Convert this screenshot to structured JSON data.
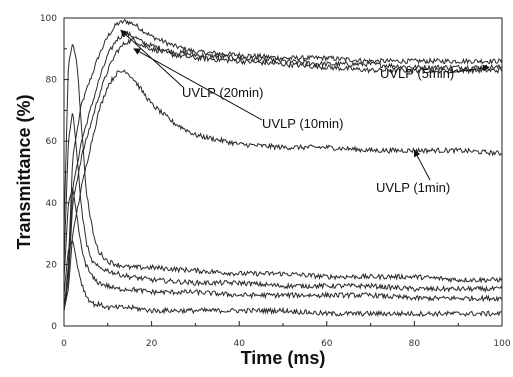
{
  "chart_data": {
    "type": "line",
    "title": "",
    "xlabel": "Time (ms)",
    "ylabel": "Transmittance (%)",
    "xlim": [
      0,
      100
    ],
    "ylim": [
      0,
      100
    ],
    "xticks": [
      0,
      20,
      40,
      60,
      80,
      100
    ],
    "yticks": [
      0,
      20,
      40,
      60,
      80,
      100
    ],
    "grid": false,
    "legend": "none",
    "series": [
      {
        "name": "UVLP (20min)",
        "x": [
          0,
          1,
          2,
          4,
          6,
          8,
          10,
          12,
          14,
          16,
          18,
          20,
          25,
          30,
          40,
          50,
          60,
          70,
          80,
          90,
          100
        ],
        "y": [
          5,
          20,
          55,
          72,
          80,
          88,
          94,
          98,
          99,
          98,
          96,
          94,
          91,
          89,
          88,
          87,
          87,
          86,
          86,
          86,
          86
        ]
      },
      {
        "name": "UVLP (10min)",
        "x": [
          0,
          1,
          2,
          4,
          6,
          8,
          10,
          12,
          14,
          16,
          18,
          20,
          25,
          30,
          40,
          50,
          60,
          70,
          80,
          90,
          100
        ],
        "y": [
          5,
          18,
          45,
          60,
          70,
          80,
          88,
          93,
          95,
          94,
          92,
          91,
          89,
          88,
          87,
          86,
          85,
          85,
          84,
          84,
          84
        ]
      },
      {
        "name": "UVLP (5min)",
        "x": [
          0,
          1,
          2,
          4,
          6,
          8,
          10,
          12,
          14,
          16,
          18,
          20,
          25,
          30,
          40,
          50,
          60,
          70,
          80,
          90,
          100
        ],
        "y": [
          5,
          15,
          40,
          55,
          65,
          75,
          83,
          89,
          92,
          93,
          91,
          90,
          88,
          87,
          86,
          85,
          84,
          83,
          83,
          83,
          83
        ]
      },
      {
        "name": "UVLP (1min)",
        "x": [
          0,
          1,
          2,
          4,
          6,
          8,
          10,
          12,
          14,
          16,
          18,
          20,
          25,
          30,
          40,
          50,
          60,
          70,
          80,
          90,
          100
        ],
        "y": [
          5,
          12,
          30,
          45,
          58,
          70,
          78,
          82,
          83,
          80,
          76,
          72,
          66,
          62,
          59,
          58,
          58,
          57,
          57,
          57,
          56
        ]
      },
      {
        "name": "",
        "x": [
          0,
          1,
          2,
          3,
          4,
          5,
          6,
          7,
          8,
          10,
          12,
          15,
          20,
          30,
          40,
          50,
          60,
          70,
          80,
          90,
          100
        ],
        "y": [
          30,
          85,
          92,
          85,
          65,
          45,
          35,
          28,
          24,
          21,
          20,
          19,
          19,
          18,
          17,
          17,
          16,
          16,
          16,
          15,
          15
        ]
      },
      {
        "name": "",
        "x": [
          0,
          1,
          2,
          3,
          4,
          5,
          6,
          7,
          8,
          10,
          12,
          15,
          20,
          30,
          40,
          50,
          60,
          70,
          80,
          90,
          100
        ],
        "y": [
          20,
          60,
          70,
          55,
          38,
          28,
          22,
          20,
          19,
          18,
          17,
          16,
          15,
          14,
          14,
          13,
          13,
          13,
          12,
          12,
          12
        ]
      },
      {
        "name": "",
        "x": [
          0,
          1,
          2,
          3,
          4,
          5,
          6,
          7,
          8,
          10,
          12,
          15,
          20,
          30,
          40,
          50,
          60,
          70,
          80,
          90,
          100
        ],
        "y": [
          15,
          40,
          45,
          35,
          25,
          20,
          17,
          15,
          14,
          13,
          12,
          12,
          11,
          11,
          10,
          10,
          10,
          10,
          9,
          9,
          9
        ]
      },
      {
        "name": "",
        "x": [
          0,
          1,
          2,
          3,
          4,
          5,
          6,
          7,
          8,
          10,
          12,
          15,
          20,
          30,
          40,
          50,
          60,
          70,
          80,
          90,
          100
        ],
        "y": [
          10,
          25,
          28,
          20,
          14,
          10,
          8,
          7,
          7,
          6,
          6,
          6,
          5,
          5,
          5,
          5,
          4,
          4,
          4,
          4,
          4
        ]
      }
    ],
    "annotations": [
      {
        "text": "UVLP (20min)",
        "arrow_to": [
          13,
          96
        ]
      },
      {
        "text": "UVLP (10min)",
        "arrow_to": [
          16,
          90
        ]
      },
      {
        "text": "UVLP (5min)",
        "arrow_to": [
          97,
          84
        ]
      },
      {
        "text": "UVLP (1min)",
        "arrow_to": [
          80,
          57
        ]
      }
    ]
  }
}
